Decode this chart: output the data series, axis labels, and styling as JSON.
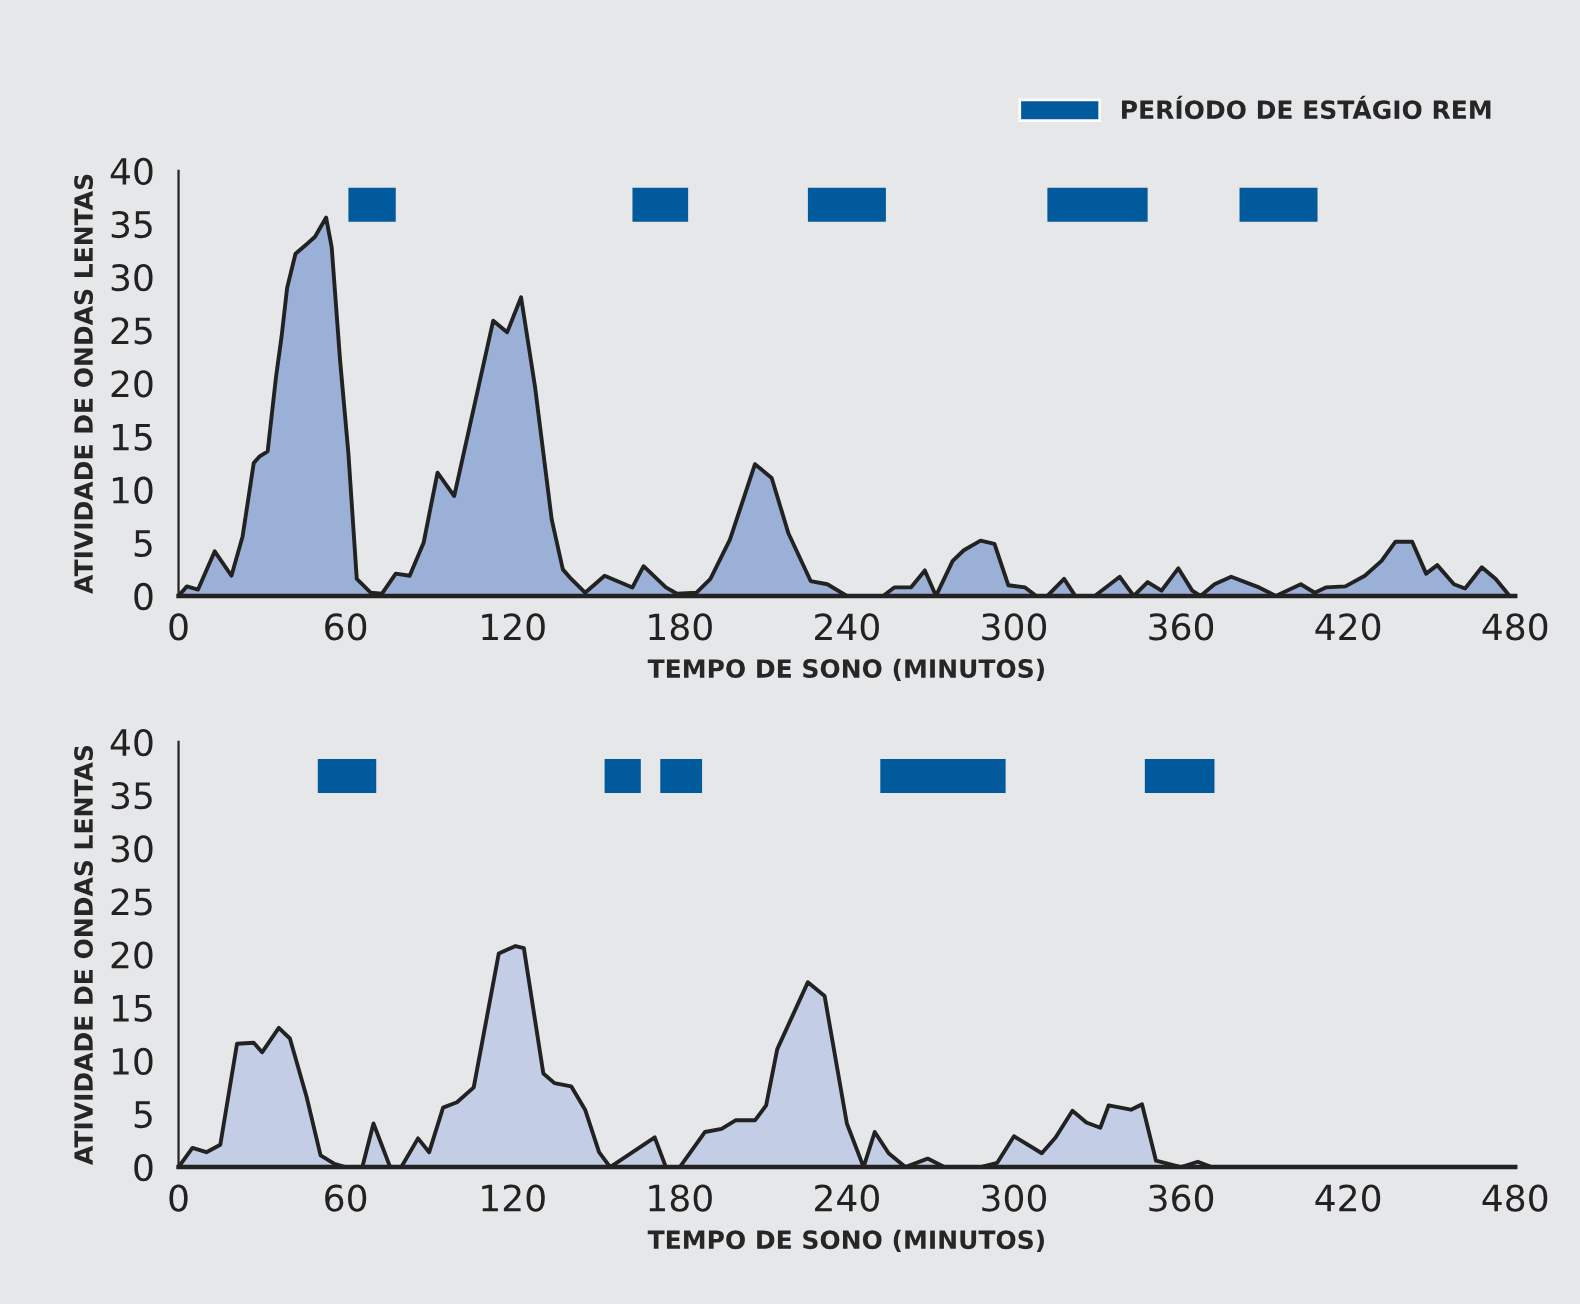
{
  "chart_data": [
    {
      "type": "area",
      "xlabel": "TEMPO DE SONO (MINUTOS)",
      "ylabel": "ATIVIDADE DE ONDAS LENTAS",
      "xlim": [
        0,
        480
      ],
      "xticks": [
        0,
        60,
        120,
        180,
        240,
        300,
        360,
        420,
        480
      ],
      "ylim": [
        0,
        40
      ],
      "yticks": [
        0,
        5,
        10,
        15,
        20,
        25,
        30,
        35,
        40
      ],
      "grid": false,
      "legend": "top right",
      "x": [
        0,
        3,
        7,
        13,
        19,
        23,
        27,
        29,
        32,
        35,
        37,
        39,
        42,
        46,
        49,
        53,
        55,
        58,
        61,
        64,
        69,
        73,
        78,
        83,
        88,
        93,
        99,
        113,
        118,
        123,
        128,
        134,
        138,
        141,
        146,
        153,
        163,
        167,
        175,
        179,
        186,
        191,
        198,
        207,
        213,
        219,
        227,
        233,
        240,
        253,
        257,
        263,
        268,
        272,
        278,
        282,
        288,
        293,
        298,
        304,
        308,
        312,
        318,
        322,
        329,
        338,
        343,
        348,
        353,
        359,
        364,
        367,
        372,
        378,
        388,
        394,
        403,
        408,
        412,
        419,
        426,
        432,
        437,
        443,
        448,
        452,
        458,
        462,
        468,
        473,
        478
      ],
      "series": [
        {
          "color": "#9bb0d6",
          "values": [
            0,
            0.9,
            0.6,
            4.2,
            1.9,
            5.6,
            12.5,
            13.1,
            13.6,
            20.6,
            24.4,
            29,
            32.2,
            33.1,
            33.8,
            35.6,
            32.8,
            22.2,
            13.4,
            1.6,
            0.3,
            0.2,
            2.1,
            1.9,
            5,
            11.6,
            9.4,
            25.9,
            24.8,
            28.1,
            19.7,
            7.2,
            2.5,
            1.6,
            0.3,
            1.9,
            0.8,
            2.8,
            0.8,
            0.2,
            0.3,
            1.6,
            5.3,
            12.4,
            11.1,
            5.9,
            1.4,
            1.1,
            0,
            0,
            0.8,
            0.8,
            2.4,
            0,
            3.3,
            4.3,
            5.2,
            4.9,
            1,
            0.8,
            0,
            0,
            1.6,
            0,
            0,
            1.8,
            0,
            1.3,
            0.5,
            2.6,
            0.5,
            0,
            1.1,
            1.8,
            0.8,
            0,
            1.1,
            0.3,
            0.8,
            0.9,
            1.9,
            3.3,
            5.1,
            5.1,
            2.1,
            2.9,
            1.1,
            0.7,
            2.7,
            1.6,
            0
          ]
        }
      ],
      "bands": [
        {
          "axis": "x",
          "from": 61,
          "to": 78,
          "color": "#005a9c",
          "label": "PERÍODO DE ESTÁGIO REM"
        },
        {
          "axis": "x",
          "from": 163,
          "to": 183,
          "color": "#005a9c"
        },
        {
          "axis": "x",
          "from": 226,
          "to": 254,
          "color": "#005a9c"
        },
        {
          "axis": "x",
          "from": 312,
          "to": 348,
          "color": "#005a9c"
        },
        {
          "axis": "x",
          "from": 381,
          "to": 409,
          "color": "#005a9c"
        }
      ]
    },
    {
      "type": "area",
      "xlabel": "TEMPO DE SONO (MINUTOS)",
      "ylabel": "ATIVIDADE DE ONDAS LENTAS",
      "xlim": [
        0,
        480
      ],
      "xticks": [
        0,
        60,
        120,
        180,
        240,
        300,
        360,
        420,
        480
      ],
      "ylim": [
        0,
        40
      ],
      "yticks": [
        0,
        5,
        10,
        15,
        20,
        25,
        30,
        35,
        40
      ],
      "grid": false,
      "x": [
        0,
        5,
        10,
        15,
        21,
        27,
        30,
        36,
        40,
        46,
        51,
        56,
        60,
        66,
        70,
        76,
        80,
        86,
        90,
        95,
        100,
        106,
        115,
        121,
        124,
        131,
        135,
        141,
        146,
        151,
        155,
        171,
        175,
        180,
        189,
        195,
        200,
        207,
        211,
        215,
        226,
        232,
        240,
        246,
        250,
        255,
        261,
        269,
        275,
        288,
        294,
        300,
        310,
        315,
        321,
        326,
        331,
        334,
        342,
        346,
        351,
        360,
        366,
        371
      ],
      "series": [
        {
          "color": "#c3cde6",
          "values": [
            0,
            1.8,
            1.4,
            2.1,
            11.6,
            11.7,
            10.8,
            13.1,
            12.1,
            6.6,
            1.1,
            0.3,
            0,
            0,
            4.1,
            0,
            0,
            2.7,
            1.4,
            5.6,
            6.1,
            7.5,
            20.1,
            20.8,
            20.6,
            8.8,
            7.9,
            7.6,
            5.4,
            1.4,
            0,
            2.8,
            0,
            0,
            3.3,
            3.6,
            4.4,
            4.4,
            5.8,
            11.1,
            17.4,
            16.1,
            4.1,
            0,
            3.3,
            1.3,
            0,
            0.8,
            0,
            0,
            0.4,
            2.9,
            1.3,
            2.8,
            5.3,
            4.2,
            3.7,
            5.8,
            5.4,
            5.9,
            0.6,
            0,
            0.5,
            0
          ]
        }
      ],
      "bands": [
        {
          "axis": "x",
          "from": 50,
          "to": 71,
          "color": "#005a9c"
        },
        {
          "axis": "x",
          "from": 153,
          "to": 166,
          "color": "#005a9c"
        },
        {
          "axis": "x",
          "from": 173,
          "to": 188,
          "color": "#005a9c"
        },
        {
          "axis": "x",
          "from": 252,
          "to": 297,
          "color": "#005a9c"
        },
        {
          "axis": "x",
          "from": 347,
          "to": 372,
          "color": "#005a9c"
        }
      ]
    }
  ]
}
